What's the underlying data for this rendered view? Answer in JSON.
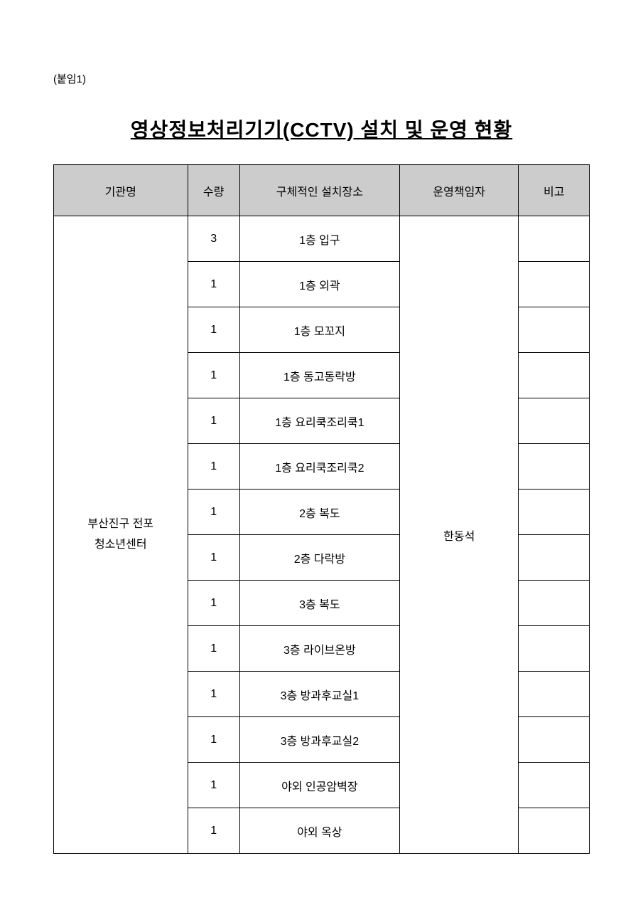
{
  "attachment_label": "(붙임1)",
  "page_title": "영상정보처리기기(CCTV) 설치 및 운영 현황",
  "table": {
    "columns": [
      "기관명",
      "수량",
      "구체적인 설치장소",
      "운영책임자",
      "비고"
    ],
    "org_name_line1": "부산진구 전포",
    "org_name_line2": "청소년센터",
    "manager": "한동석",
    "rows": [
      {
        "qty": "3",
        "location": "1층 입구",
        "note": ""
      },
      {
        "qty": "1",
        "location": "1층 외곽",
        "note": ""
      },
      {
        "qty": "1",
        "location": "1층 모꼬지",
        "note": ""
      },
      {
        "qty": "1",
        "location": "1층 동고동락방",
        "note": ""
      },
      {
        "qty": "1",
        "location": "1층 요리쿡조리쿡1",
        "note": ""
      },
      {
        "qty": "1",
        "location": "1층 요리쿡조리쿡2",
        "note": ""
      },
      {
        "qty": "1",
        "location": "2층 복도",
        "note": ""
      },
      {
        "qty": "1",
        "location": "2층 다락방",
        "note": ""
      },
      {
        "qty": "1",
        "location": "3층 복도",
        "note": ""
      },
      {
        "qty": "1",
        "location": "3층 라이브온방",
        "note": ""
      },
      {
        "qty": "1",
        "location": "3층 방과후교실1",
        "note": ""
      },
      {
        "qty": "1",
        "location": "3층 방과후교실2",
        "note": ""
      },
      {
        "qty": "1",
        "location": "야외 인공암벽장",
        "note": ""
      },
      {
        "qty": "1",
        "location": "야외 옥상",
        "note": ""
      }
    ]
  }
}
